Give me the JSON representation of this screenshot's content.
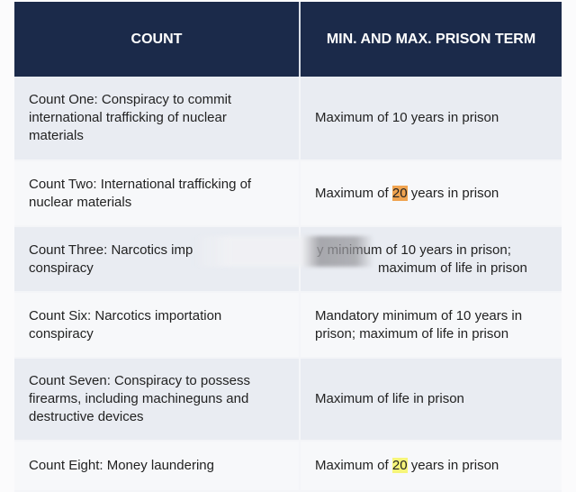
{
  "headers": [
    "COUNT",
    "MIN. AND MAX. PRISON TERM"
  ],
  "rows": [
    {
      "count": "Count One: Conspiracy to commit international trafficking of nuclear materials",
      "term_pre": "Maximum of 10 years in prison",
      "term_hl": "",
      "term_post": ""
    },
    {
      "count": "Count Two: International trafficking of nuclear materials",
      "term_pre": "Maximum of ",
      "term_hl": "20",
      "term_post": " years in prison"
    },
    {
      "count": "Count Three: Narcotics imp",
      "term_pre": "y minimum of 10 years in prison; maximum of life in prison",
      "term_hl": "",
      "term_post": ""
    },
    {
      "count": "Count Six: Narcotics importation conspiracy",
      "term_pre": "Mandatory minimum of 10 years in prison; maximum of life in prison",
      "term_hl": "",
      "term_post": ""
    },
    {
      "count": "Count Seven: Conspiracy to possess firearms, including machineguns and destructive devices",
      "term_pre": "Maximum of life in prison",
      "term_hl": "",
      "term_post": ""
    },
    {
      "count": "Count Eight: Money laundering",
      "term_pre": "Maximum of ",
      "term_hl": "20",
      "term_post": " years in prison"
    }
  ],
  "colors": {
    "header_bg": "#1b2a4a",
    "highlight_row2": "#f0a450",
    "highlight_row6": "#f6f57a"
  }
}
